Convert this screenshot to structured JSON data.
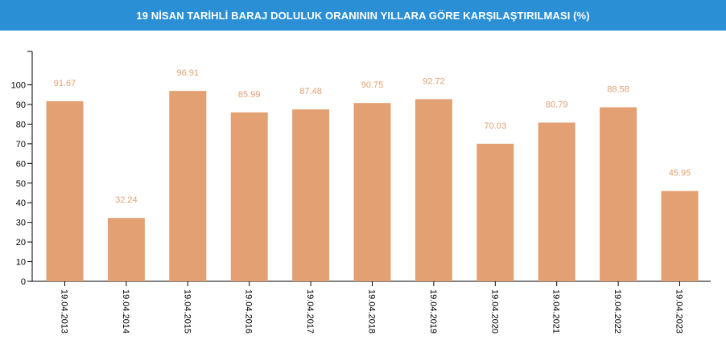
{
  "header": {
    "title": "19 NİSAN TARİHLİ BARAJ DOLULUK ORANININ YILLARA GÖRE KARŞILAŞTIRILMASI (%)"
  },
  "colors": {
    "header_bg": "#2b8fd6",
    "bar": "#e3a072",
    "value_label": "#e3a072",
    "axis": "#000000"
  },
  "chart_data": {
    "type": "bar",
    "title": "19 NİSAN TARİHLİ BARAJ DOLULUK ORANININ YILLARA GÖRE KARŞILAŞTIRILMASI (%)",
    "categories": [
      "19.04.2013",
      "19.04.2014",
      "19.04.2015",
      "19.04.2016",
      "19.04.2017",
      "19.04.2018",
      "19.04.2019",
      "19.04.2020",
      "19.04.2021",
      "19.04.2022",
      "19.04.2023"
    ],
    "values": [
      91.67,
      32.24,
      96.91,
      85.99,
      87.48,
      90.75,
      92.72,
      70.03,
      80.79,
      88.58,
      45.95
    ],
    "value_labels": [
      "91.67",
      "32.24",
      "96.91",
      "85.99",
      "87.48",
      "90.75",
      "92.72",
      "70.03",
      "80.79",
      "88.58",
      "45.95"
    ],
    "y_ticks": [
      "0",
      "10",
      "20",
      "30",
      "40",
      "50",
      "60",
      "70",
      "80",
      "90",
      "100"
    ],
    "ylim": [
      0,
      117
    ],
    "xlabel": "",
    "ylabel": "",
    "grid": false,
    "legend": "none"
  }
}
